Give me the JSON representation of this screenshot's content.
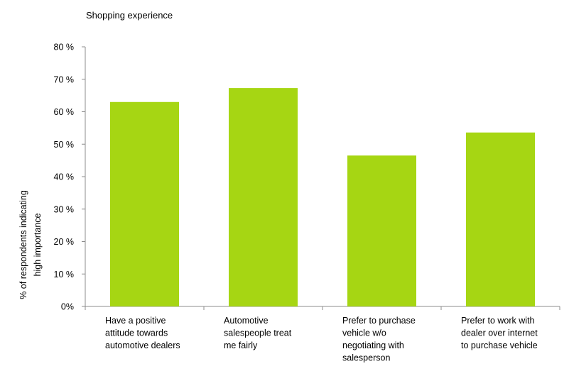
{
  "chart_data": {
    "type": "bar",
    "title": "Shopping experience",
    "ylabel_lines": [
      "% of respondents indicating",
      "high importance"
    ],
    "categories": [
      [
        "Have a positive",
        "attitude towards",
        "automotive dealers"
      ],
      [
        "Automotive",
        "salespeople treat",
        "me fairly"
      ],
      [
        "Prefer to purchase",
        "vehicle w/o",
        "negotiating with",
        "salesperson"
      ],
      [
        "Prefer to work with",
        "dealer over internet",
        "to purchase vehicle"
      ]
    ],
    "values": [
      63,
      67.3,
      46.5,
      53.6
    ],
    "ylim": [
      0,
      80
    ],
    "yticks": [
      0,
      10,
      20,
      30,
      40,
      50,
      60,
      70,
      80
    ],
    "ytick_labels": [
      "0%",
      "10 %",
      "20 %",
      "30 %",
      "40 %",
      "50 %",
      "60 %",
      "70 %",
      "80 %"
    ],
    "bar_color": "#a6d613",
    "grid": false,
    "legend": "none"
  }
}
